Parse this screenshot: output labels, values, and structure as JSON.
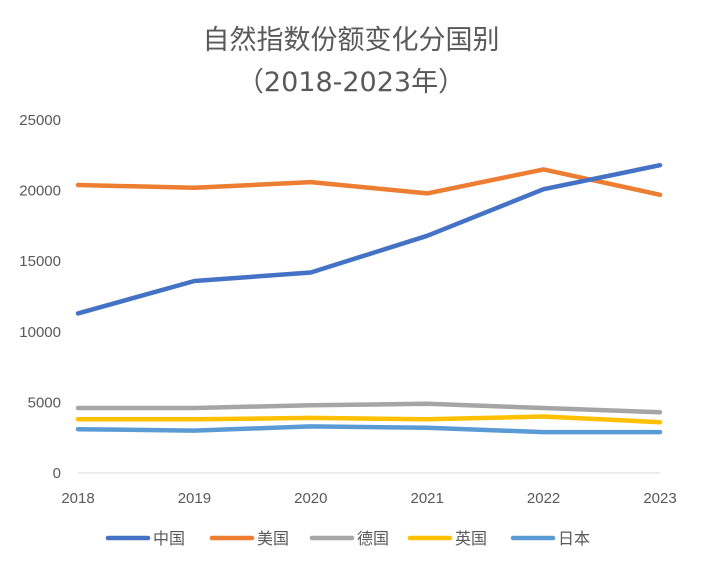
{
  "chart_data": {
    "type": "line",
    "title": "自然指数份额变化分国别",
    "subtitle": "（2018-2023年）",
    "xlabel": "",
    "ylabel": "",
    "x": [
      "2018",
      "2019",
      "2020",
      "2021",
      "2022",
      "2023"
    ],
    "ylim": [
      0,
      25000
    ],
    "yticks": [
      0,
      5000,
      10000,
      15000,
      20000,
      25000
    ],
    "grid": false,
    "legend_position": "bottom",
    "series": [
      {
        "name": "中国",
        "color": "#4472C4",
        "values": [
          11300,
          13600,
          14200,
          16800,
          20100,
          21800
        ]
      },
      {
        "name": "美国",
        "color": "#ED7D31",
        "values": [
          20400,
          20200,
          20600,
          19800,
          21500,
          19700
        ]
      },
      {
        "name": "德国",
        "color": "#A5A5A5",
        "values": [
          4600,
          4600,
          4800,
          4900,
          4600,
          4300
        ]
      },
      {
        "name": "英国",
        "color": "#FFC000",
        "values": [
          3800,
          3800,
          3900,
          3800,
          4000,
          3600
        ]
      },
      {
        "name": "日本",
        "color": "#5B9BD5",
        "values": [
          3100,
          3000,
          3300,
          3200,
          2900,
          2900
        ]
      }
    ]
  }
}
